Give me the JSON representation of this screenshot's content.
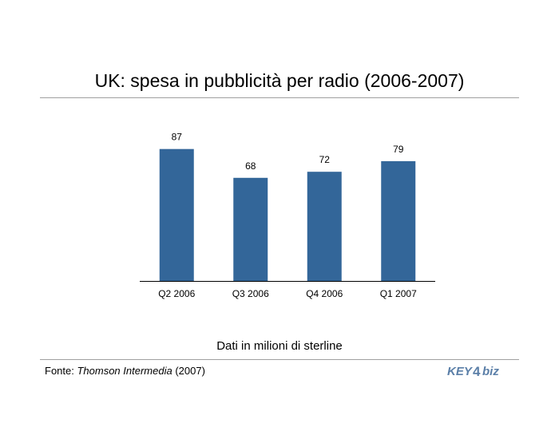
{
  "title": "UK: spesa in pubblicità per radio (2006-2007)",
  "subtitle": "Dati in milioni di sterline",
  "source": {
    "prefix": "Fonte: ",
    "publisher": "Thomson Intermedia",
    "suffix": " (2007)"
  },
  "logo": {
    "text": "KEY4biz"
  },
  "colors": {
    "bar": "#336699",
    "rule": "#a0a0a0",
    "logo_blue": "#5b7fa8"
  },
  "chart_data": {
    "type": "bar",
    "categories": [
      "Q2 2006",
      "Q3 2006",
      "Q4 2006",
      "Q1 2007"
    ],
    "values": [
      87,
      68,
      72,
      79
    ],
    "title": "UK: spesa in pubblicità per radio (2006-2007)",
    "xlabel": "",
    "ylabel": "",
    "ylim": [
      0,
      100
    ],
    "grid": false,
    "legend": "none",
    "data_labels": true
  }
}
